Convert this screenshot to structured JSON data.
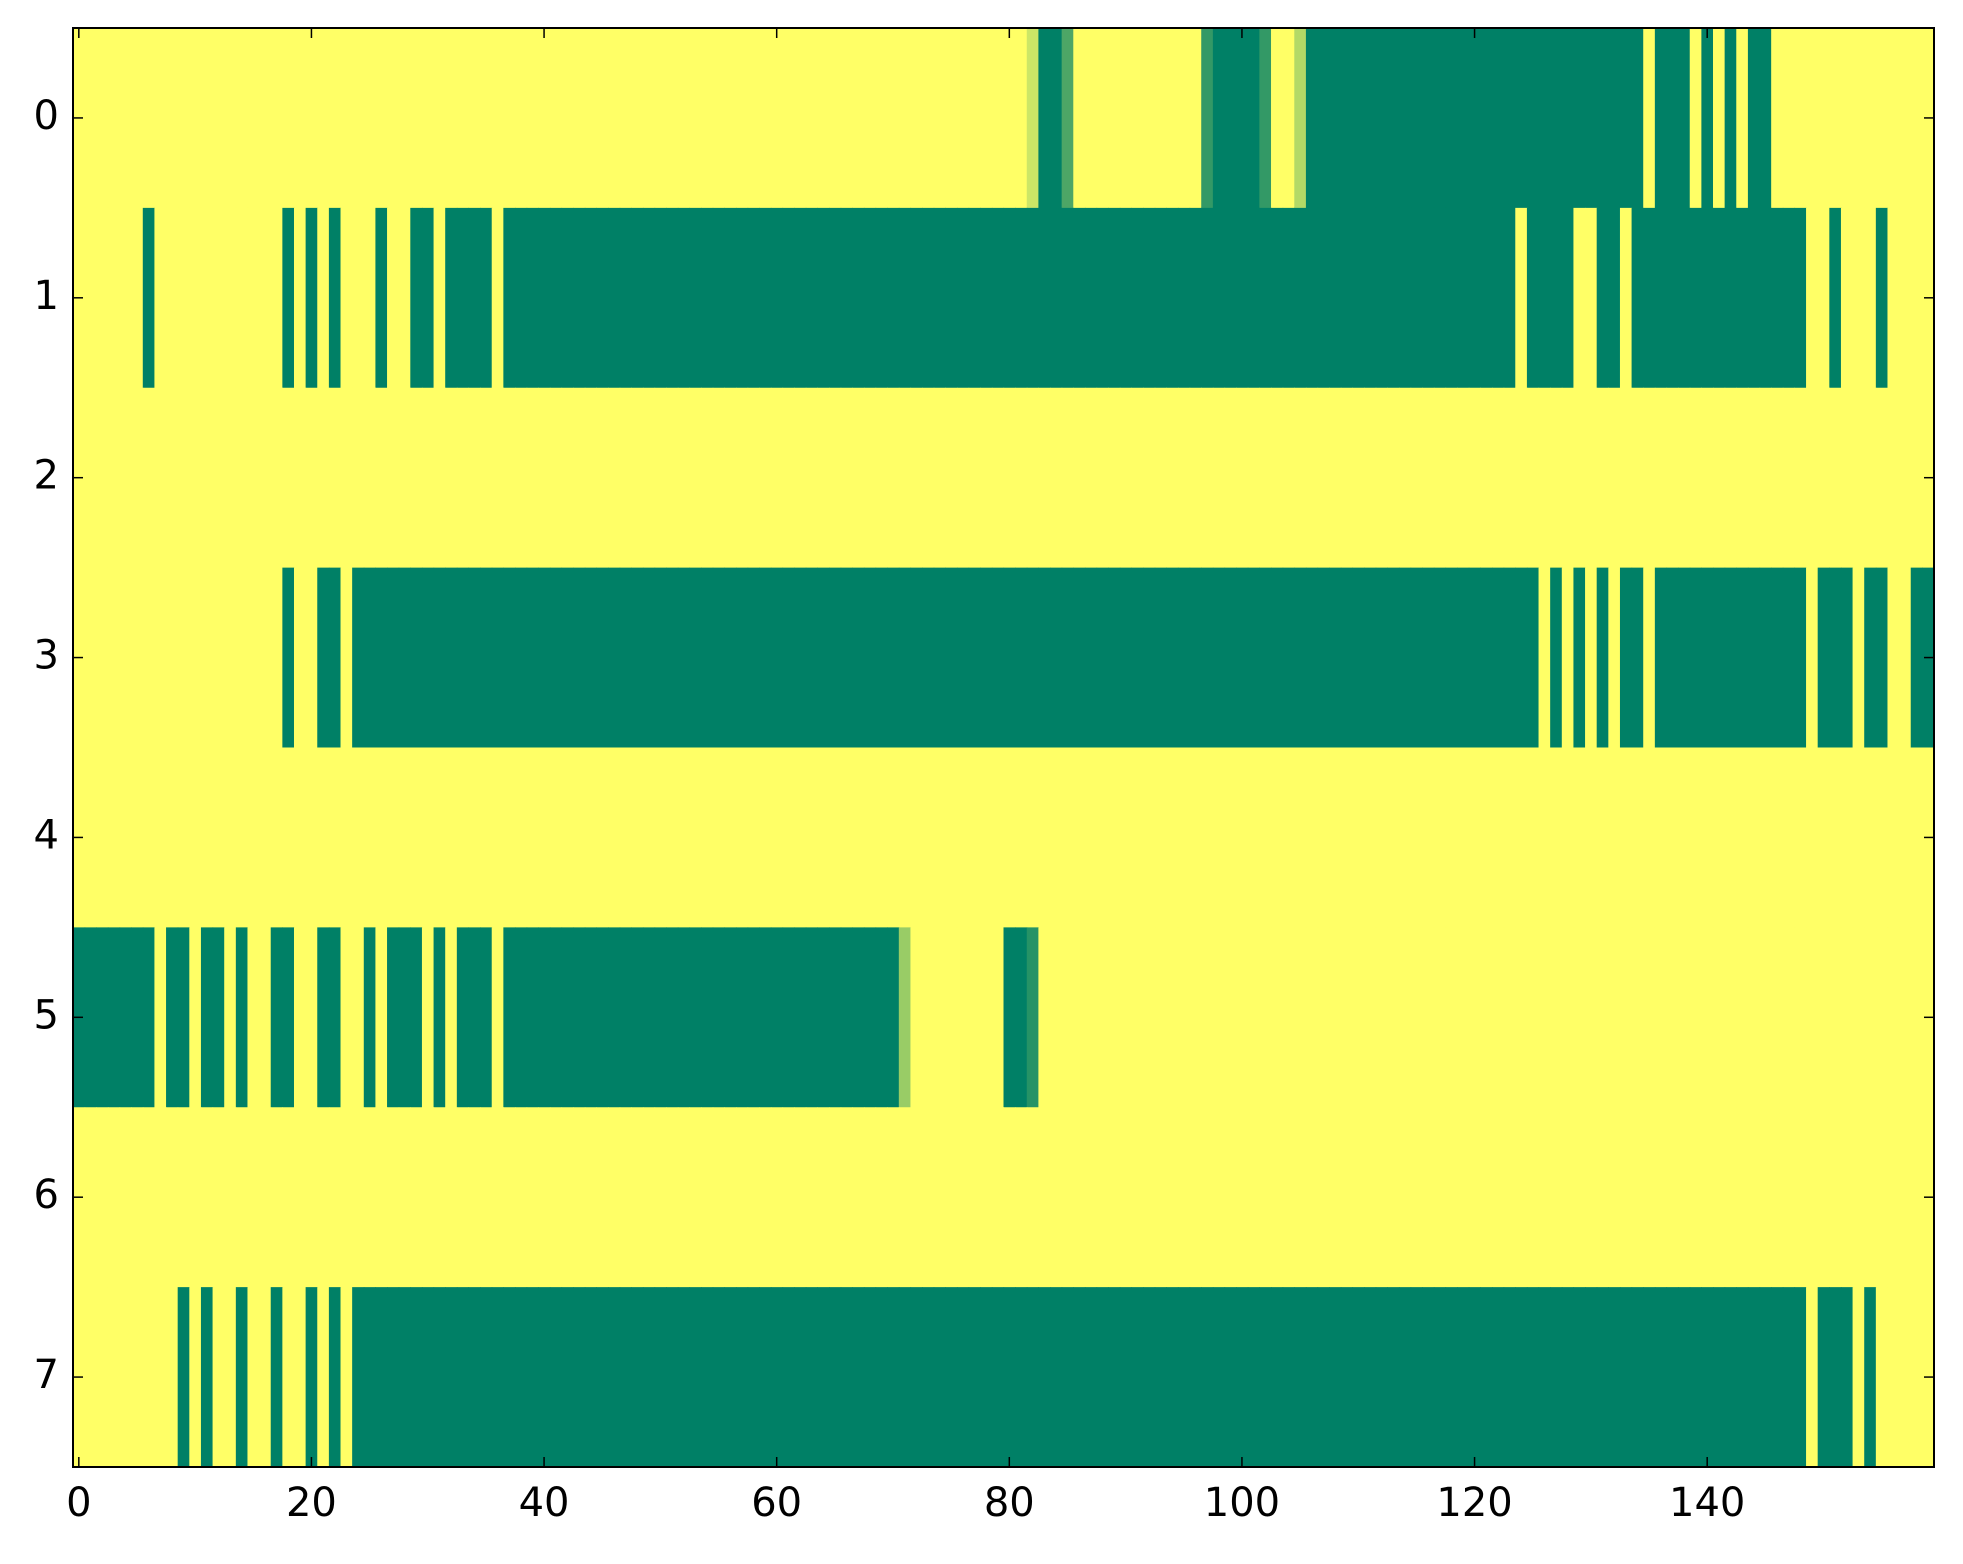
{
  "chart_data": {
    "type": "heatmap",
    "colormap": "summer",
    "xlim": [
      -0.5,
      159.5
    ],
    "ylim": [
      7.5,
      -0.5
    ],
    "xticks": [
      0,
      20,
      40,
      60,
      80,
      100,
      120,
      140
    ],
    "yticks": [
      0,
      1,
      2,
      3,
      4,
      5,
      6,
      7
    ],
    "z": [
      [
        1,
        1,
        1,
        1,
        1,
        1,
        1,
        1,
        1,
        1,
        1,
        1,
        1,
        1,
        1,
        1,
        1,
        1,
        1,
        1,
        1,
        1,
        1,
        1,
        1,
        1,
        1,
        1,
        1,
        1,
        1,
        1,
        1,
        1,
        1,
        1,
        1,
        1,
        1,
        1,
        1,
        1,
        1,
        1,
        1,
        1,
        1,
        1,
        1,
        1,
        1,
        1,
        1,
        1,
        1,
        1,
        1,
        1,
        1,
        1,
        1,
        1,
        1,
        1,
        1,
        1,
        1,
        1,
        1,
        1,
        1,
        1,
        1,
        1,
        1,
        1,
        1,
        1,
        1,
        1,
        1,
        1,
        0.8,
        0,
        0,
        0.3,
        1,
        1,
        1,
        1,
        1,
        1,
        1,
        1,
        1,
        1,
        1,
        0.2,
        0,
        0,
        0,
        0,
        0.2,
        1,
        1,
        0.7,
        0,
        0,
        0,
        0,
        0,
        0,
        0,
        0,
        0,
        0,
        0,
        0,
        0,
        0,
        0,
        0,
        0,
        0,
        0,
        0,
        0,
        0,
        0,
        0,
        0,
        0,
        0,
        0,
        0,
        1,
        0,
        0,
        0,
        1,
        0,
        1,
        0,
        1,
        0,
        0,
        1,
        1,
        1,
        1,
        1,
        1,
        1,
        1,
        1,
        1,
        1,
        1,
        1,
        1
      ],
      [
        1,
        1,
        1,
        1,
        1,
        1,
        0,
        1,
        1,
        1,
        1,
        1,
        1,
        1,
        1,
        1,
        1,
        1,
        0,
        1,
        0,
        1,
        0,
        1,
        1,
        1,
        0,
        1,
        1,
        0,
        0,
        1,
        0,
        0,
        0,
        0,
        1,
        0,
        0,
        0,
        0,
        0,
        0,
        0,
        0,
        0,
        0,
        0,
        0,
        0,
        0,
        0,
        0,
        0,
        0,
        0,
        0,
        0,
        0,
        0,
        0,
        0,
        0,
        0,
        0,
        0,
        0,
        0,
        0,
        0,
        0,
        0,
        0,
        0,
        0,
        0,
        0,
        0,
        0,
        0,
        0,
        0,
        0,
        0,
        0,
        0,
        0,
        0,
        0,
        0,
        0,
        0,
        0,
        0,
        0,
        0,
        0,
        0,
        0,
        0,
        0,
        0,
        0,
        0,
        0,
        0,
        0,
        0,
        0,
        0,
        0,
        0,
        0,
        0,
        0,
        0,
        0,
        0,
        0,
        0,
        0,
        0,
        0,
        0,
        1,
        0,
        0,
        0,
        0,
        1,
        1,
        0,
        0,
        1,
        0,
        0,
        0,
        0,
        0,
        0,
        0,
        0,
        0,
        0,
        0,
        0,
        0,
        0,
        0,
        1,
        1,
        0,
        1,
        1,
        1,
        0,
        1,
        1,
        1,
        1
      ],
      [
        1,
        1,
        1,
        1,
        1,
        1,
        1,
        1,
        1,
        1,
        1,
        1,
        1,
        1,
        1,
        1,
        1,
        1,
        1,
        1,
        1,
        1,
        1,
        1,
        1,
        1,
        1,
        1,
        1,
        1,
        1,
        1,
        1,
        1,
        1,
        1,
        1,
        1,
        1,
        1,
        1,
        1,
        1,
        1,
        1,
        1,
        1,
        1,
        1,
        1,
        1,
        1,
        1,
        1,
        1,
        1,
        1,
        1,
        1,
        1,
        1,
        1,
        1,
        1,
        1,
        1,
        1,
        1,
        1,
        1,
        1,
        1,
        1,
        1,
        1,
        1,
        1,
        1,
        1,
        1,
        1,
        1,
        1,
        1,
        1,
        1,
        1,
        1,
        1,
        1,
        1,
        1,
        1,
        1,
        1,
        1,
        1,
        1,
        1,
        1,
        1,
        1,
        1,
        1,
        1,
        1,
        1,
        1,
        1,
        1,
        1,
        1,
        1,
        1,
        1,
        1,
        1,
        1,
        1,
        1,
        1,
        1,
        1,
        1,
        1,
        1,
        1,
        1,
        1,
        1,
        1,
        1,
        1,
        1,
        1,
        1,
        1,
        1,
        1,
        1,
        1,
        1,
        1,
        1,
        1,
        1,
        1,
        1,
        1,
        1,
        1,
        1,
        1,
        1,
        1,
        1,
        1,
        1,
        1,
        1
      ],
      [
        1,
        1,
        1,
        1,
        1,
        1,
        1,
        1,
        1,
        1,
        1,
        1,
        1,
        1,
        1,
        1,
        1,
        1,
        0,
        1,
        1,
        0,
        0,
        1,
        0,
        0,
        0,
        0,
        0,
        0,
        0,
        0,
        0,
        0,
        0,
        0,
        0,
        0,
        0,
        0,
        0,
        0,
        0,
        0,
        0,
        0,
        0,
        0,
        0,
        0,
        0,
        0,
        0,
        0,
        0,
        0,
        0,
        0,
        0,
        0,
        0,
        0,
        0,
        0,
        0,
        0,
        0,
        0,
        0,
        0,
        0,
        0,
        0,
        0,
        0,
        0,
        0,
        0,
        0,
        0,
        0,
        0,
        0,
        0,
        0,
        0,
        0,
        0,
        0,
        0,
        0,
        0,
        0,
        0,
        0,
        0,
        0,
        0,
        0,
        0,
        0,
        0,
        0,
        0,
        0,
        0,
        0,
        0,
        0,
        0,
        0,
        0,
        0,
        0,
        0,
        0,
        0,
        0,
        0,
        0,
        0,
        0,
        0,
        0,
        0,
        0,
        1,
        0,
        1,
        0,
        1,
        0,
        1,
        0,
        0,
        1,
        0,
        0,
        0,
        0,
        0,
        0,
        0,
        0,
        0,
        0,
        0,
        0,
        0,
        1,
        0,
        0,
        0,
        1,
        0,
        0,
        1,
        1,
        0,
        0
      ],
      [
        1,
        1,
        1,
        1,
        1,
        1,
        1,
        1,
        1,
        1,
        1,
        1,
        1,
        1,
        1,
        1,
        1,
        1,
        1,
        1,
        1,
        1,
        1,
        1,
        1,
        1,
        1,
        1,
        1,
        1,
        1,
        1,
        1,
        1,
        1,
        1,
        1,
        1,
        1,
        1,
        1,
        1,
        1,
        1,
        1,
        1,
        1,
        1,
        1,
        1,
        1,
        1,
        1,
        1,
        1,
        1,
        1,
        1,
        1,
        1,
        1,
        1,
        1,
        1,
        1,
        1,
        1,
        1,
        1,
        1,
        1,
        1,
        1,
        1,
        1,
        1,
        1,
        1,
        1,
        1,
        1,
        1,
        1,
        1,
        1,
        1,
        1,
        1,
        1,
        1,
        1,
        1,
        1,
        1,
        1,
        1,
        1,
        1,
        1,
        1,
        1,
        1,
        1,
        1,
        1,
        1,
        1,
        1,
        1,
        1,
        1,
        1,
        1,
        1,
        1,
        1,
        1,
        1,
        1,
        1,
        1,
        1,
        1,
        1,
        1,
        1,
        1,
        1,
        1,
        1,
        1,
        1,
        1,
        1,
        1,
        1,
        1,
        1,
        1,
        1,
        1,
        1,
        1,
        1,
        1,
        1,
        1,
        1,
        1,
        1,
        1,
        1,
        1,
        1,
        1,
        1,
        1,
        1,
        1,
        1
      ],
      [
        0,
        0,
        0,
        0,
        0,
        0,
        0,
        1,
        0,
        0,
        1,
        0,
        0,
        1,
        0,
        1,
        1,
        0,
        0,
        1,
        1,
        0,
        0,
        1,
        1,
        0,
        1,
        0,
        0,
        0,
        1,
        0,
        1,
        0,
        0,
        0,
        1,
        0,
        0,
        0,
        0,
        0,
        0,
        0,
        0,
        0,
        0,
        0,
        0,
        0,
        0,
        0,
        0,
        0,
        0,
        0,
        0,
        0,
        0,
        0,
        0,
        0,
        0,
        0,
        0,
        0,
        0,
        0,
        0,
        0,
        0,
        0.6,
        1,
        1,
        1,
        1,
        1,
        1,
        1,
        1,
        0,
        0,
        0.15,
        1,
        1,
        1,
        1,
        1,
        1,
        1,
        1,
        1,
        1,
        1,
        1,
        1,
        1,
        1,
        1,
        1,
        1,
        1,
        1,
        1,
        1,
        1,
        1,
        1,
        1,
        1,
        1,
        1,
        1,
        1,
        1,
        1,
        1,
        1,
        1,
        1,
        1,
        1,
        1,
        1,
        1,
        1,
        1,
        1,
        1,
        1,
        1,
        1,
        1,
        1,
        1,
        1,
        1,
        1,
        1,
        1,
        1,
        1,
        1,
        1,
        1,
        1,
        1,
        1,
        1,
        1,
        1,
        1,
        1,
        1,
        1,
        1,
        1,
        1,
        1,
        1
      ],
      [
        1,
        1,
        1,
        1,
        1,
        1,
        1,
        1,
        1,
        1,
        1,
        1,
        1,
        1,
        1,
        1,
        1,
        1,
        1,
        1,
        1,
        1,
        1,
        1,
        1,
        1,
        1,
        1,
        1,
        1,
        1,
        1,
        1,
        1,
        1,
        1,
        1,
        1,
        1,
        1,
        1,
        1,
        1,
        1,
        1,
        1,
        1,
        1,
        1,
        1,
        1,
        1,
        1,
        1,
        1,
        1,
        1,
        1,
        1,
        1,
        1,
        1,
        1,
        1,
        1,
        1,
        1,
        1,
        1,
        1,
        1,
        1,
        1,
        1,
        1,
        1,
        1,
        1,
        1,
        1,
        1,
        1,
        1,
        1,
        1,
        1,
        1,
        1,
        1,
        1,
        1,
        1,
        1,
        1,
        1,
        1,
        1,
        1,
        1,
        1,
        1,
        1,
        1,
        1,
        1,
        1,
        1,
        1,
        1,
        1,
        1,
        1,
        1,
        1,
        1,
        1,
        1,
        1,
        1,
        1,
        1,
        1,
        1,
        1,
        1,
        1,
        1,
        1,
        1,
        1,
        1,
        1,
        1,
        1,
        1,
        1,
        1,
        1,
        1,
        1,
        1,
        1,
        1,
        1,
        1,
        1,
        1,
        1,
        1,
        1,
        1,
        1,
        1,
        1,
        1,
        1,
        1,
        1,
        1,
        1
      ],
      [
        1,
        1,
        1,
        1,
        1,
        1,
        1,
        1,
        1,
        0,
        1,
        0,
        1,
        1,
        0,
        1,
        1,
        0,
        1,
        1,
        0,
        1,
        0,
        1,
        0,
        0,
        0,
        0,
        0,
        0,
        0,
        0,
        0,
        0,
        0,
        0,
        0,
        0,
        0,
        0,
        0,
        0,
        0,
        0,
        0,
        0,
        0,
        0,
        0,
        0,
        0,
        0,
        0,
        0,
        0,
        0,
        0,
        0,
        0,
        0,
        0,
        0,
        0,
        0,
        0,
        0,
        0,
        0,
        0,
        0,
        0,
        0,
        0,
        0,
        0,
        0,
        0,
        0,
        0,
        0,
        0,
        0,
        0,
        0,
        0,
        0,
        0,
        0,
        0,
        0,
        0,
        0,
        0,
        0,
        0,
        0,
        0,
        0,
        0,
        0,
        0,
        0,
        0,
        0,
        0,
        0,
        0,
        0,
        0,
        0,
        0,
        0,
        0,
        0,
        0,
        0,
        0,
        0,
        0,
        0,
        0,
        0,
        0,
        0,
        0,
        0,
        0,
        0,
        0,
        0,
        0,
        0,
        0,
        0,
        0,
        0,
        0,
        0,
        0,
        0,
        0,
        0,
        0,
        0,
        0,
        0,
        0,
        0,
        0,
        1,
        0,
        0,
        0,
        1,
        0,
        1,
        1,
        1,
        1,
        1
      ]
    ]
  }
}
